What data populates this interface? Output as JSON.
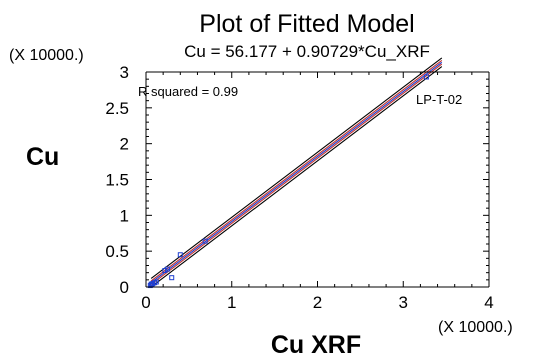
{
  "chart_data": {
    "type": "scatter",
    "title": "Plot of Fitted Model",
    "subtitle": "Cu = 56.177 + 0.90729*Cu_XRF",
    "xlabel": "Cu  XRF",
    "ylabel": "Cu",
    "x_multiplier": "(X 10000.)",
    "y_multiplier": "(X 10000.)",
    "xlim": [
      0,
      4
    ],
    "ylim": [
      0,
      3
    ],
    "x_ticks": [
      "0",
      "1",
      "2",
      "3",
      "4"
    ],
    "y_ticks": [
      "0",
      "0.5",
      "1",
      "1.5",
      "2",
      "2.5",
      "3"
    ],
    "r_squared_label": "R squared = 0.99",
    "sample_label": "LP-T-02",
    "grid": false,
    "fit": {
      "intercept": 56.177,
      "slope": 0.90729
    },
    "points": [
      {
        "x": 0.05,
        "y": 0.02
      },
      {
        "x": 0.06,
        "y": 0.04
      },
      {
        "x": 0.07,
        "y": 0.03
      },
      {
        "x": 0.08,
        "y": 0.05
      },
      {
        "x": 0.1,
        "y": 0.06
      },
      {
        "x": 0.12,
        "y": 0.07
      },
      {
        "x": 0.22,
        "y": 0.23
      },
      {
        "x": 0.25,
        "y": 0.25
      },
      {
        "x": 0.3,
        "y": 0.13
      },
      {
        "x": 0.4,
        "y": 0.45
      },
      {
        "x": 0.69,
        "y": 0.64
      },
      {
        "x": 3.27,
        "y": 2.93
      }
    ],
    "colors": {
      "points": "#1f3fd0",
      "fit_line": "#1f3fd0",
      "confidence_band": "#c03030",
      "prediction_band": "#000000",
      "axes": "#000000"
    }
  }
}
